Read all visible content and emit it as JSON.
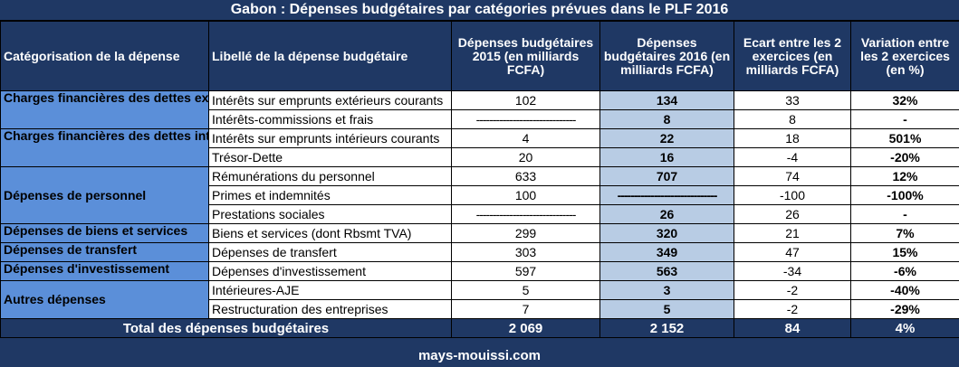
{
  "title": "Gabon : Dépenses budgétaires par catégories prévues dans le PLF 2016",
  "headers": {
    "categorie": "Catégorisation de la dépense",
    "libelle": "Libellé de la dépense budgétaire",
    "dep2015": "Dépenses budgétaires 2015 (en milliards FCFA)",
    "dep2016": "Dépenses budgétaires 2016 (en milliards FCFA)",
    "ecart": "Ecart entre les 2 exercices (en milliards FCFA)",
    "variation": "Variation entre les 2 exercices (en %)"
  },
  "categories": [
    "Charges financières des dettes extérieures",
    "Charges financières des dettes intérieures",
    "Dépenses de personnel",
    "Dépenses de biens et services",
    "Dépenses de transfert",
    "Dépenses d'investissement",
    "Autres dépenses"
  ],
  "rows": [
    {
      "libelle": "Intérêts sur emprunts extérieurs courants",
      "dep2015": "102",
      "dep2016": "134",
      "ecart": "33",
      "variation": "32%",
      "sign": "pos"
    },
    {
      "libelle": "Intérêts-commissions et frais",
      "dep2015": "------------------------------",
      "dep2016": "8",
      "ecart": "8",
      "variation": "-",
      "sign": "pos"
    },
    {
      "libelle": "Intérêts sur emprunts intérieurs courants",
      "dep2015": "4",
      "dep2016": "22",
      "ecart": "18",
      "variation": "501%",
      "sign": "pos"
    },
    {
      "libelle": "Trésor-Dette",
      "dep2015": "20",
      "dep2016": "16",
      "ecart": "-4",
      "variation": "-20%",
      "sign": "neg"
    },
    {
      "libelle": "Rémunérations du personnel",
      "dep2015": "633",
      "dep2016": "707",
      "ecart": "74",
      "variation": "12%",
      "sign": "pos"
    },
    {
      "libelle": "Primes et indemnités",
      "dep2015": "100",
      "dep2016": "------------------------------",
      "ecart": "-100",
      "variation": "-100%",
      "sign": "neg"
    },
    {
      "libelle": "Prestations sociales",
      "dep2015": "------------------------------",
      "dep2016": "26",
      "ecart": "26",
      "variation": "-",
      "sign": "pos"
    },
    {
      "libelle": "Biens et services (dont Rbsmt TVA)",
      "dep2015": "299",
      "dep2016": "320",
      "ecart": "21",
      "variation": "7%",
      "sign": "pos"
    },
    {
      "libelle": "Dépenses de transfert",
      "dep2015": "303",
      "dep2016": "349",
      "ecart": "47",
      "variation": "15%",
      "sign": "pos"
    },
    {
      "libelle": "Dépenses d'investissement",
      "dep2015": "597",
      "dep2016": "563",
      "ecart": "-34",
      "variation": "-6%",
      "sign": "neg"
    },
    {
      "libelle": "Intérieures-AJE",
      "dep2015": "5",
      "dep2016": "3",
      "ecart": "-2",
      "variation": "-40%",
      "sign": "neg"
    },
    {
      "libelle": "Restructuration des entreprises",
      "dep2015": "7",
      "dep2016": "5",
      "ecart": "-2",
      "variation": "-29%",
      "sign": "neg"
    }
  ],
  "total": {
    "label": "Total des dépenses budgétaires",
    "dep2015": "2 069",
    "dep2016": "2 152",
    "ecart": "84",
    "variation": "4%"
  },
  "footer": "mays-mouissi.com",
  "colors": {
    "header_bg": "#1f3864",
    "category_bg": "#5b8fd9",
    "highlight_2016": "#b8cce4",
    "positive": "#22a836",
    "negative": "#e02020"
  }
}
